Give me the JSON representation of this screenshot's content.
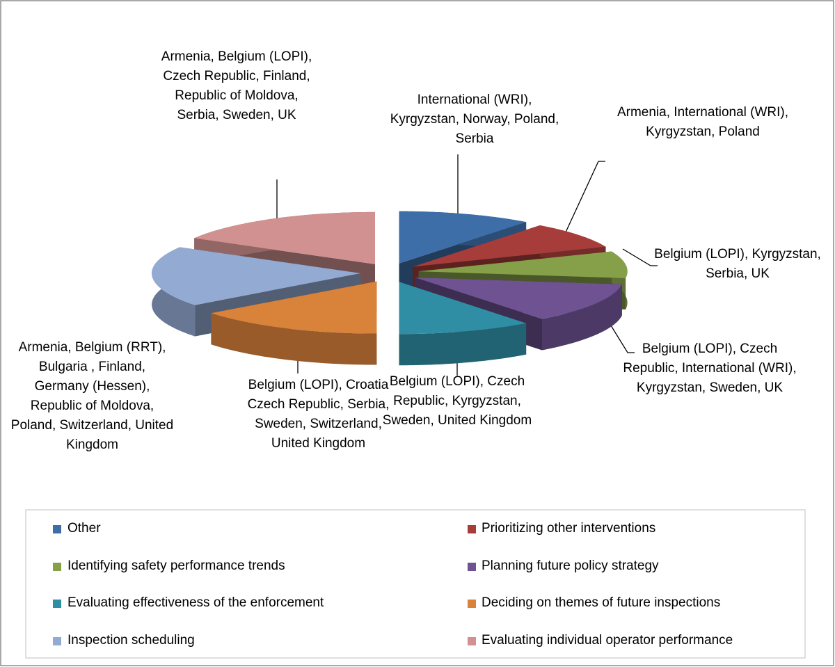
{
  "chart_data": {
    "type": "pie",
    "categories": [
      "Other",
      "Prioritizing other interventions",
      "Identifying safety performance trends",
      "Planning future policy strategy",
      "Evaluating effectiveness of the enforcement",
      "Deciding on themes of future inspections",
      "Inspection scheduling",
      "Evaluating individual operator performance"
    ],
    "values": [
      5,
      4,
      4,
      6,
      5,
      7,
      9,
      8
    ],
    "colors": [
      "#3d6ea8",
      "#a63d3a",
      "#86a04a",
      "#6e5291",
      "#2f8ea4",
      "#d9823a",
      "#93aad3",
      "#d09190"
    ],
    "data_labels": [
      "International (WRI), Kyrgyzstan, Norway, Poland, Serbia",
      "Armenia, International (WRI), Kyrgyzstan,  Poland",
      "Belgium (LOPI), Kyrgyzstan,  Serbia, UK",
      "Belgium (LOPI), Czech Republic, International (WRI), Kyrgyzstan, Sweden, UK",
      "Belgium (LOPI), Czech Republic, Kyrgyzstan, Sweden, United Kingdom",
      "Belgium (LOPI), Croatia Czech Republic,  Serbia, Sweden, Switzerland, United Kingdom",
      "Armenia, Belgium (RRT), Bulgaria , Finland, Germany (Hessen), Republic of Moldova,  Poland, Switzerland, United Kingdom",
      "Armenia, Belgium (LOPI), Czech Republic, Finland, Republic of Moldova, Serbia, Sweden, UK"
    ],
    "legend": "bottom"
  }
}
